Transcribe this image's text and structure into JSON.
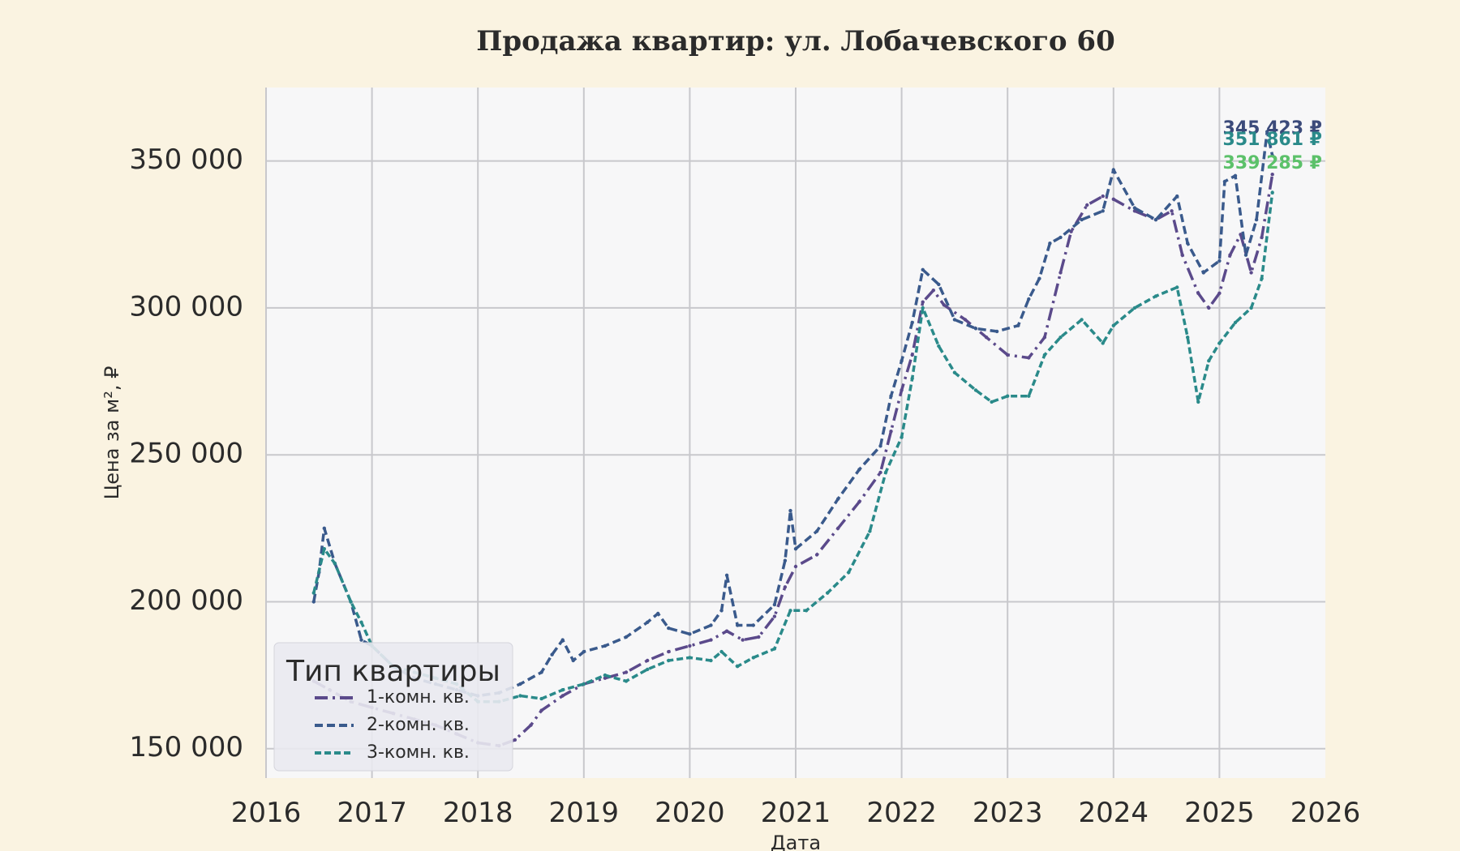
{
  "chart_data": {
    "type": "line",
    "title": "Продажа квартир: ул. Лобачевского 60",
    "xlabel": "Дата",
    "ylabel": "Цена за м², ₽",
    "xlim": [
      2016,
      2026
    ],
    "ylim": [
      140000,
      375000
    ],
    "x_ticks": [
      2016,
      2017,
      2018,
      2019,
      2020,
      2021,
      2022,
      2023,
      2024,
      2025,
      2026
    ],
    "y_ticks": [
      150000,
      200000,
      250000,
      300000,
      350000
    ],
    "y_tick_labels": [
      "150 000",
      "200 000",
      "250 000",
      "300 000",
      "350 000"
    ],
    "x_tick_labels": [
      "2016",
      "2017",
      "2018",
      "2019",
      "2020",
      "2021",
      "2022",
      "2023",
      "2024",
      "2025",
      "2026"
    ],
    "grid": true,
    "legend": {
      "title": "Тип квартиры",
      "placement": "bottom-left"
    },
    "series": [
      {
        "name": "1-комн. кв.",
        "color": "#5b4a8b",
        "dash": "dashdot",
        "end_label": "345 423 ₽",
        "end_label_color": "#3b4a7a",
        "points": [
          [
            2016.45,
            173000
          ],
          [
            2016.6,
            170000
          ],
          [
            2016.8,
            166000
          ],
          [
            2017.0,
            164000
          ],
          [
            2017.2,
            162000
          ],
          [
            2017.4,
            160000
          ],
          [
            2017.6,
            158000
          ],
          [
            2017.8,
            155000
          ],
          [
            2018.0,
            152000
          ],
          [
            2018.2,
            151000
          ],
          [
            2018.35,
            153000
          ],
          [
            2018.5,
            158000
          ],
          [
            2018.6,
            163000
          ],
          [
            2018.8,
            168000
          ],
          [
            2019.0,
            172000
          ],
          [
            2019.2,
            174000
          ],
          [
            2019.4,
            176000
          ],
          [
            2019.6,
            180000
          ],
          [
            2019.8,
            183000
          ],
          [
            2020.0,
            185000
          ],
          [
            2020.2,
            187000
          ],
          [
            2020.35,
            190000
          ],
          [
            2020.5,
            187000
          ],
          [
            2020.65,
            188000
          ],
          [
            2020.8,
            195000
          ],
          [
            2020.9,
            205000
          ],
          [
            2021.0,
            212000
          ],
          [
            2021.2,
            216000
          ],
          [
            2021.4,
            225000
          ],
          [
            2021.6,
            234000
          ],
          [
            2021.8,
            244000
          ],
          [
            2021.9,
            258000
          ],
          [
            2022.0,
            272000
          ],
          [
            2022.1,
            284000
          ],
          [
            2022.2,
            302000
          ],
          [
            2022.3,
            306000
          ],
          [
            2022.4,
            301000
          ],
          [
            2022.6,
            296000
          ],
          [
            2022.8,
            290000
          ],
          [
            2023.0,
            284000
          ],
          [
            2023.2,
            283000
          ],
          [
            2023.35,
            290000
          ],
          [
            2023.5,
            312000
          ],
          [
            2023.6,
            326000
          ],
          [
            2023.75,
            335000
          ],
          [
            2023.9,
            338000
          ],
          [
            2024.0,
            337000
          ],
          [
            2024.2,
            333000
          ],
          [
            2024.4,
            330000
          ],
          [
            2024.55,
            333000
          ],
          [
            2024.65,
            318000
          ],
          [
            2024.8,
            305000
          ],
          [
            2024.9,
            300000
          ],
          [
            2025.0,
            305000
          ],
          [
            2025.1,
            318000
          ],
          [
            2025.2,
            325000
          ],
          [
            2025.3,
            312000
          ],
          [
            2025.4,
            324000
          ],
          [
            2025.5,
            345423
          ]
        ]
      },
      {
        "name": "2-комн. кв.",
        "color": "#3a5a8c",
        "dash": "dashed",
        "end_label": "351 861 ₽",
        "end_label_color": "#2a8a8a",
        "points": [
          [
            2016.45,
            200000
          ],
          [
            2016.5,
            210000
          ],
          [
            2016.55,
            225000
          ],
          [
            2016.65,
            213000
          ],
          [
            2016.8,
            200000
          ],
          [
            2016.9,
            187000
          ],
          [
            2017.0,
            185000
          ],
          [
            2017.2,
            178000
          ],
          [
            2017.4,
            174000
          ],
          [
            2017.6,
            172000
          ],
          [
            2017.8,
            170000
          ],
          [
            2018.0,
            168000
          ],
          [
            2018.2,
            169000
          ],
          [
            2018.4,
            172000
          ],
          [
            2018.6,
            176000
          ],
          [
            2018.7,
            182000
          ],
          [
            2018.8,
            187000
          ],
          [
            2018.9,
            180000
          ],
          [
            2019.0,
            183000
          ],
          [
            2019.2,
            185000
          ],
          [
            2019.4,
            188000
          ],
          [
            2019.6,
            193000
          ],
          [
            2019.7,
            196000
          ],
          [
            2019.8,
            191000
          ],
          [
            2020.0,
            189000
          ],
          [
            2020.2,
            192000
          ],
          [
            2020.3,
            197000
          ],
          [
            2020.35,
            209000
          ],
          [
            2020.45,
            192000
          ],
          [
            2020.6,
            192000
          ],
          [
            2020.8,
            199000
          ],
          [
            2020.9,
            214000
          ],
          [
            2020.95,
            231000
          ],
          [
            2021.0,
            218000
          ],
          [
            2021.2,
            224000
          ],
          [
            2021.4,
            235000
          ],
          [
            2021.6,
            245000
          ],
          [
            2021.8,
            253000
          ],
          [
            2021.9,
            270000
          ],
          [
            2022.0,
            282000
          ],
          [
            2022.1,
            295000
          ],
          [
            2022.2,
            313000
          ],
          [
            2022.35,
            308000
          ],
          [
            2022.5,
            296000
          ],
          [
            2022.7,
            293000
          ],
          [
            2022.9,
            292000
          ],
          [
            2023.1,
            294000
          ],
          [
            2023.2,
            303000
          ],
          [
            2023.3,
            310000
          ],
          [
            2023.4,
            322000
          ],
          [
            2023.5,
            324000
          ],
          [
            2023.7,
            330000
          ],
          [
            2023.9,
            333000
          ],
          [
            2024.0,
            347000
          ],
          [
            2024.2,
            334000
          ],
          [
            2024.4,
            330000
          ],
          [
            2024.6,
            338000
          ],
          [
            2024.7,
            322000
          ],
          [
            2024.85,
            312000
          ],
          [
            2025.0,
            316000
          ],
          [
            2025.05,
            343000
          ],
          [
            2025.15,
            345000
          ],
          [
            2025.25,
            318000
          ],
          [
            2025.35,
            330000
          ],
          [
            2025.45,
            360000
          ],
          [
            2025.5,
            351861
          ]
        ]
      },
      {
        "name": "3-комн. кв.",
        "color": "#2a8a8a",
        "dash": "dotted",
        "end_label": "339 285 ₽",
        "end_label_color": "#5cc16a",
        "points": [
          [
            2016.45,
            203000
          ],
          [
            2016.55,
            218000
          ],
          [
            2016.65,
            213000
          ],
          [
            2016.8,
            200000
          ],
          [
            2016.9,
            193000
          ],
          [
            2017.0,
            185000
          ],
          [
            2017.2,
            178000
          ],
          [
            2017.4,
            176000
          ],
          [
            2017.6,
            174000
          ],
          [
            2017.8,
            172000
          ],
          [
            2018.0,
            166000
          ],
          [
            2018.2,
            166000
          ],
          [
            2018.4,
            168000
          ],
          [
            2018.6,
            167000
          ],
          [
            2018.8,
            170000
          ],
          [
            2019.0,
            172000
          ],
          [
            2019.2,
            175000
          ],
          [
            2019.4,
            173000
          ],
          [
            2019.6,
            177000
          ],
          [
            2019.8,
            180000
          ],
          [
            2020.0,
            181000
          ],
          [
            2020.2,
            180000
          ],
          [
            2020.3,
            183000
          ],
          [
            2020.45,
            178000
          ],
          [
            2020.6,
            181000
          ],
          [
            2020.8,
            184000
          ],
          [
            2020.95,
            197000
          ],
          [
            2021.1,
            197000
          ],
          [
            2021.3,
            203000
          ],
          [
            2021.5,
            210000
          ],
          [
            2021.7,
            224000
          ],
          [
            2021.85,
            244000
          ],
          [
            2022.0,
            256000
          ],
          [
            2022.1,
            276000
          ],
          [
            2022.2,
            300000
          ],
          [
            2022.35,
            287000
          ],
          [
            2022.5,
            278000
          ],
          [
            2022.7,
            272000
          ],
          [
            2022.85,
            268000
          ],
          [
            2023.0,
            270000
          ],
          [
            2023.2,
            270000
          ],
          [
            2023.35,
            284000
          ],
          [
            2023.5,
            290000
          ],
          [
            2023.7,
            296000
          ],
          [
            2023.9,
            288000
          ],
          [
            2024.0,
            294000
          ],
          [
            2024.2,
            300000
          ],
          [
            2024.4,
            304000
          ],
          [
            2024.6,
            307000
          ],
          [
            2024.7,
            290000
          ],
          [
            2024.8,
            268000
          ],
          [
            2024.9,
            282000
          ],
          [
            2025.0,
            288000
          ],
          [
            2025.15,
            295000
          ],
          [
            2025.3,
            300000
          ],
          [
            2025.4,
            310000
          ],
          [
            2025.5,
            339285
          ]
        ]
      }
    ]
  }
}
